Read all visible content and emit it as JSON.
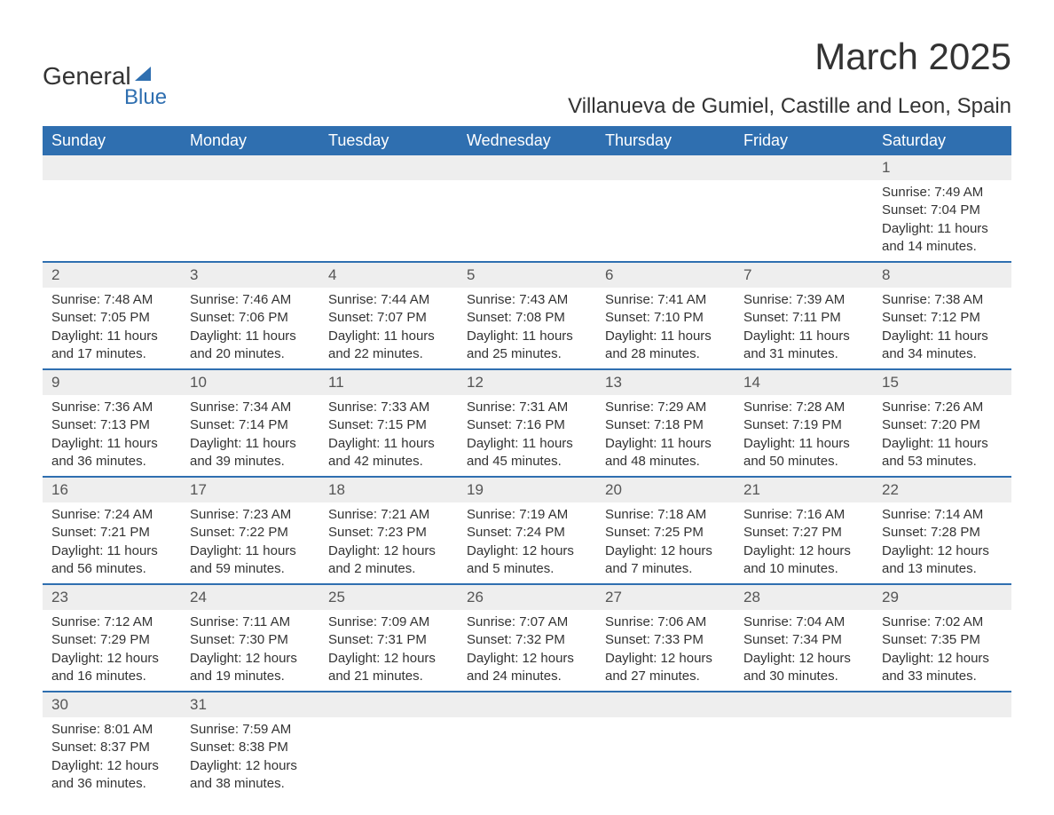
{
  "colors": {
    "header_bg": "#2f6fb0",
    "header_text": "#ffffff",
    "daynum_bg": "#eeeeee",
    "body_text": "#333333",
    "rule": "#2f6fb0",
    "page_bg": "#ffffff"
  },
  "logo": {
    "text1": "General",
    "text2": "Blue"
  },
  "title": "March 2025",
  "location": "Villanueva de Gumiel, Castille and Leon, Spain",
  "weekdays": [
    "Sunday",
    "Monday",
    "Tuesday",
    "Wednesday",
    "Thursday",
    "Friday",
    "Saturday"
  ],
  "weeks": [
    [
      {
        "num": "",
        "sunrise": "",
        "sunset": "",
        "daylight": ""
      },
      {
        "num": "",
        "sunrise": "",
        "sunset": "",
        "daylight": ""
      },
      {
        "num": "",
        "sunrise": "",
        "sunset": "",
        "daylight": ""
      },
      {
        "num": "",
        "sunrise": "",
        "sunset": "",
        "daylight": ""
      },
      {
        "num": "",
        "sunrise": "",
        "sunset": "",
        "daylight": ""
      },
      {
        "num": "",
        "sunrise": "",
        "sunset": "",
        "daylight": ""
      },
      {
        "num": "1",
        "sunrise": "Sunrise: 7:49 AM",
        "sunset": "Sunset: 7:04 PM",
        "daylight": "Daylight: 11 hours and 14 minutes."
      }
    ],
    [
      {
        "num": "2",
        "sunrise": "Sunrise: 7:48 AM",
        "sunset": "Sunset: 7:05 PM",
        "daylight": "Daylight: 11 hours and 17 minutes."
      },
      {
        "num": "3",
        "sunrise": "Sunrise: 7:46 AM",
        "sunset": "Sunset: 7:06 PM",
        "daylight": "Daylight: 11 hours and 20 minutes."
      },
      {
        "num": "4",
        "sunrise": "Sunrise: 7:44 AM",
        "sunset": "Sunset: 7:07 PM",
        "daylight": "Daylight: 11 hours and 22 minutes."
      },
      {
        "num": "5",
        "sunrise": "Sunrise: 7:43 AM",
        "sunset": "Sunset: 7:08 PM",
        "daylight": "Daylight: 11 hours and 25 minutes."
      },
      {
        "num": "6",
        "sunrise": "Sunrise: 7:41 AM",
        "sunset": "Sunset: 7:10 PM",
        "daylight": "Daylight: 11 hours and 28 minutes."
      },
      {
        "num": "7",
        "sunrise": "Sunrise: 7:39 AM",
        "sunset": "Sunset: 7:11 PM",
        "daylight": "Daylight: 11 hours and 31 minutes."
      },
      {
        "num": "8",
        "sunrise": "Sunrise: 7:38 AM",
        "sunset": "Sunset: 7:12 PM",
        "daylight": "Daylight: 11 hours and 34 minutes."
      }
    ],
    [
      {
        "num": "9",
        "sunrise": "Sunrise: 7:36 AM",
        "sunset": "Sunset: 7:13 PM",
        "daylight": "Daylight: 11 hours and 36 minutes."
      },
      {
        "num": "10",
        "sunrise": "Sunrise: 7:34 AM",
        "sunset": "Sunset: 7:14 PM",
        "daylight": "Daylight: 11 hours and 39 minutes."
      },
      {
        "num": "11",
        "sunrise": "Sunrise: 7:33 AM",
        "sunset": "Sunset: 7:15 PM",
        "daylight": "Daylight: 11 hours and 42 minutes."
      },
      {
        "num": "12",
        "sunrise": "Sunrise: 7:31 AM",
        "sunset": "Sunset: 7:16 PM",
        "daylight": "Daylight: 11 hours and 45 minutes."
      },
      {
        "num": "13",
        "sunrise": "Sunrise: 7:29 AM",
        "sunset": "Sunset: 7:18 PM",
        "daylight": "Daylight: 11 hours and 48 minutes."
      },
      {
        "num": "14",
        "sunrise": "Sunrise: 7:28 AM",
        "sunset": "Sunset: 7:19 PM",
        "daylight": "Daylight: 11 hours and 50 minutes."
      },
      {
        "num": "15",
        "sunrise": "Sunrise: 7:26 AM",
        "sunset": "Sunset: 7:20 PM",
        "daylight": "Daylight: 11 hours and 53 minutes."
      }
    ],
    [
      {
        "num": "16",
        "sunrise": "Sunrise: 7:24 AM",
        "sunset": "Sunset: 7:21 PM",
        "daylight": "Daylight: 11 hours and 56 minutes."
      },
      {
        "num": "17",
        "sunrise": "Sunrise: 7:23 AM",
        "sunset": "Sunset: 7:22 PM",
        "daylight": "Daylight: 11 hours and 59 minutes."
      },
      {
        "num": "18",
        "sunrise": "Sunrise: 7:21 AM",
        "sunset": "Sunset: 7:23 PM",
        "daylight": "Daylight: 12 hours and 2 minutes."
      },
      {
        "num": "19",
        "sunrise": "Sunrise: 7:19 AM",
        "sunset": "Sunset: 7:24 PM",
        "daylight": "Daylight: 12 hours and 5 minutes."
      },
      {
        "num": "20",
        "sunrise": "Sunrise: 7:18 AM",
        "sunset": "Sunset: 7:25 PM",
        "daylight": "Daylight: 12 hours and 7 minutes."
      },
      {
        "num": "21",
        "sunrise": "Sunrise: 7:16 AM",
        "sunset": "Sunset: 7:27 PM",
        "daylight": "Daylight: 12 hours and 10 minutes."
      },
      {
        "num": "22",
        "sunrise": "Sunrise: 7:14 AM",
        "sunset": "Sunset: 7:28 PM",
        "daylight": "Daylight: 12 hours and 13 minutes."
      }
    ],
    [
      {
        "num": "23",
        "sunrise": "Sunrise: 7:12 AM",
        "sunset": "Sunset: 7:29 PM",
        "daylight": "Daylight: 12 hours and 16 minutes."
      },
      {
        "num": "24",
        "sunrise": "Sunrise: 7:11 AM",
        "sunset": "Sunset: 7:30 PM",
        "daylight": "Daylight: 12 hours and 19 minutes."
      },
      {
        "num": "25",
        "sunrise": "Sunrise: 7:09 AM",
        "sunset": "Sunset: 7:31 PM",
        "daylight": "Daylight: 12 hours and 21 minutes."
      },
      {
        "num": "26",
        "sunrise": "Sunrise: 7:07 AM",
        "sunset": "Sunset: 7:32 PM",
        "daylight": "Daylight: 12 hours and 24 minutes."
      },
      {
        "num": "27",
        "sunrise": "Sunrise: 7:06 AM",
        "sunset": "Sunset: 7:33 PM",
        "daylight": "Daylight: 12 hours and 27 minutes."
      },
      {
        "num": "28",
        "sunrise": "Sunrise: 7:04 AM",
        "sunset": "Sunset: 7:34 PM",
        "daylight": "Daylight: 12 hours and 30 minutes."
      },
      {
        "num": "29",
        "sunrise": "Sunrise: 7:02 AM",
        "sunset": "Sunset: 7:35 PM",
        "daylight": "Daylight: 12 hours and 33 minutes."
      }
    ],
    [
      {
        "num": "30",
        "sunrise": "Sunrise: 8:01 AM",
        "sunset": "Sunset: 8:37 PM",
        "daylight": "Daylight: 12 hours and 36 minutes."
      },
      {
        "num": "31",
        "sunrise": "Sunrise: 7:59 AM",
        "sunset": "Sunset: 8:38 PM",
        "daylight": "Daylight: 12 hours and 38 minutes."
      },
      {
        "num": "",
        "sunrise": "",
        "sunset": "",
        "daylight": ""
      },
      {
        "num": "",
        "sunrise": "",
        "sunset": "",
        "daylight": ""
      },
      {
        "num": "",
        "sunrise": "",
        "sunset": "",
        "daylight": ""
      },
      {
        "num": "",
        "sunrise": "",
        "sunset": "",
        "daylight": ""
      },
      {
        "num": "",
        "sunrise": "",
        "sunset": "",
        "daylight": ""
      }
    ]
  ]
}
